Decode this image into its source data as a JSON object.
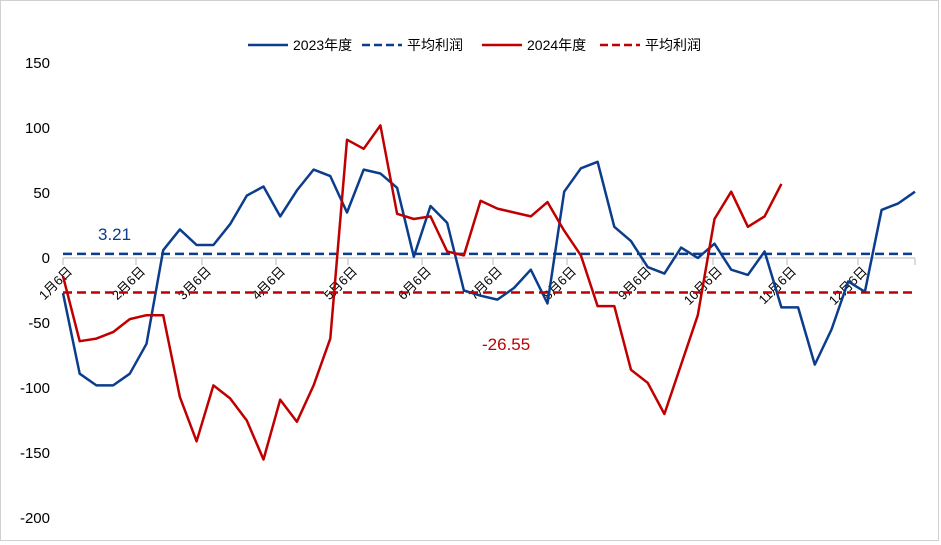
{
  "chart_data": {
    "type": "line",
    "title": "",
    "xlabel": "",
    "ylabel": "",
    "ylim": [
      -200,
      150
    ],
    "yticks": [
      "150",
      "100",
      "50",
      "0",
      "-50",
      "-100",
      "-150",
      "-200"
    ],
    "ytick_values": [
      150,
      100,
      50,
      0,
      -50,
      -100,
      -150,
      -200
    ],
    "x_tick_labels": [
      "1月6日",
      "2月6日",
      "3月6日",
      "4月6日",
      "5月6日",
      "6月6日",
      "7月6日",
      "8月6日",
      "9月6日",
      "10月6日",
      "11月6日",
      "12月6日"
    ],
    "grid": false,
    "legend_position": "top",
    "series": [
      {
        "name": "2023年度",
        "color": "#0b3d8c",
        "style": "solid",
        "values": [
          -27,
          -89,
          -98,
          -98,
          -89,
          -66,
          6,
          22,
          10,
          10,
          26,
          48,
          55,
          32,
          52,
          68,
          63,
          35,
          68,
          65,
          54,
          1,
          40,
          27,
          -25,
          -29,
          -32,
          -23,
          -9,
          -35,
          51,
          69,
          74,
          24,
          13,
          -7,
          -12,
          8,
          0,
          11,
          -9,
          -13,
          5,
          -38,
          -38,
          -82,
          -55,
          -18,
          -26,
          37,
          42,
          51
        ]
      },
      {
        "name": "平均利润",
        "color": "#0b3d8c",
        "style": "dashed",
        "value": 3.21,
        "label": "3.21"
      },
      {
        "name": "2024年度",
        "color": "#c00000",
        "style": "solid",
        "values": [
          -14,
          -64,
          -62,
          -57,
          -47,
          -44,
          -44,
          -107,
          -141,
          -98,
          -108,
          -125,
          -155,
          -109,
          -126,
          -98,
          -62,
          91,
          84,
          102,
          34,
          30,
          32,
          5,
          2,
          44,
          38,
          35,
          32,
          43,
          21,
          2,
          -37,
          -37,
          -86,
          -96,
          -120,
          -82,
          -44,
          30,
          51,
          24,
          32,
          57
        ]
      },
      {
        "name": "平均利润",
        "color": "#c00000",
        "style": "dashed",
        "value": -26.55,
        "label": "-26.55"
      }
    ]
  }
}
